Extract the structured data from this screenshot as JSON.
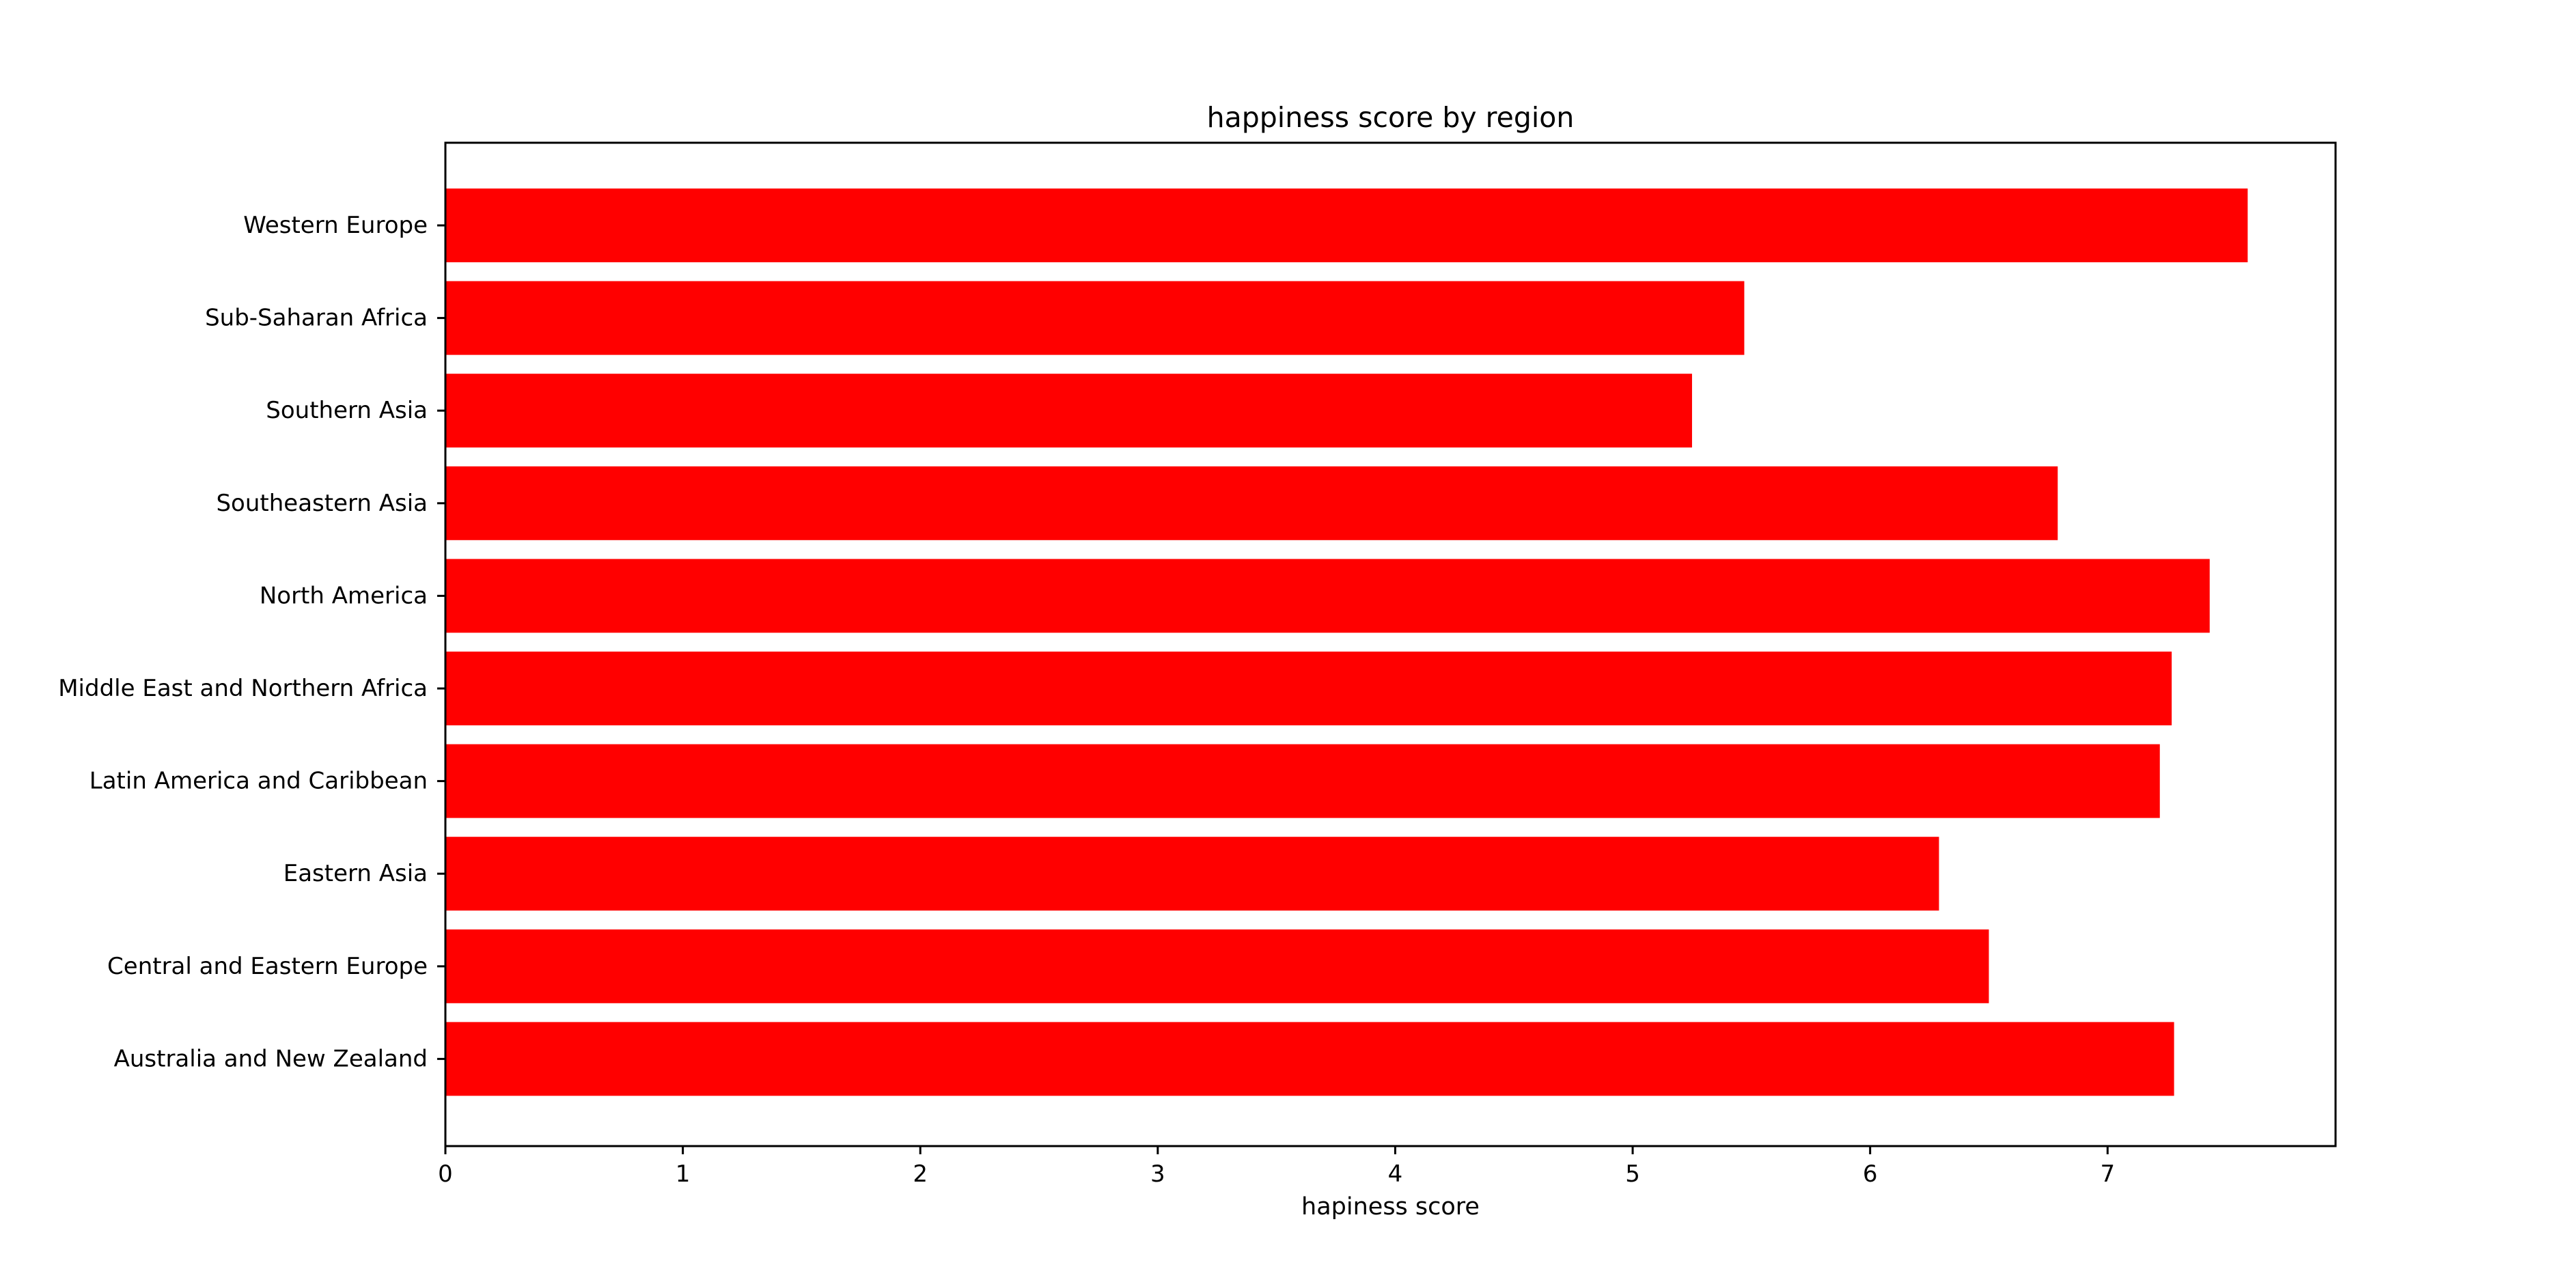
{
  "chart_data": {
    "type": "bar",
    "orientation": "horizontal",
    "title": "happiness score by region",
    "xlabel": "hapiness score",
    "ylabel": "",
    "xlim": [
      0,
      7.96
    ],
    "xticks": [
      0,
      1,
      2,
      3,
      4,
      5,
      6,
      7
    ],
    "grid": false,
    "legend": "none",
    "bar_color": "#ff0000",
    "categories": [
      "Australia and New Zealand",
      "Central and Eastern Europe",
      "Eastern Asia",
      "Latin America and Caribbean",
      "Middle East and Northern Africa",
      "North America",
      "Southeastern Asia",
      "Southern Asia",
      "Sub-Saharan Africa",
      "Western Europe"
    ],
    "values": [
      7.28,
      6.5,
      6.29,
      7.22,
      7.27,
      7.43,
      6.79,
      5.25,
      5.47,
      7.59
    ]
  }
}
